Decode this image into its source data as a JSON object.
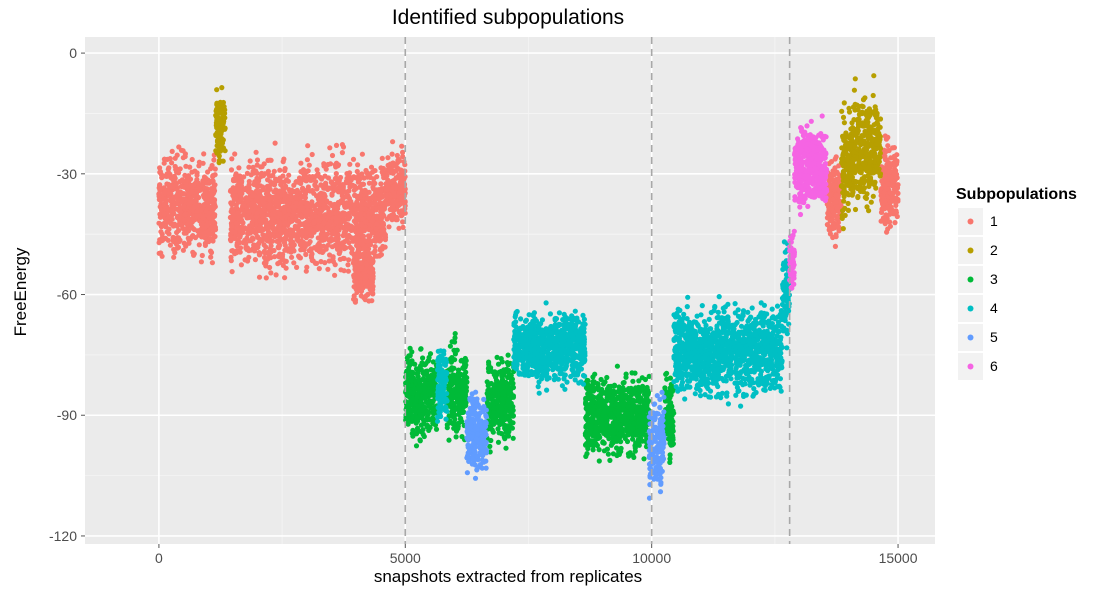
{
  "chart_data": {
    "type": "scatter",
    "title": "Identified subpopulations",
    "xlabel": "snapshots extracted from replicates",
    "ylabel": "FreeEnergy",
    "xlim": [
      -1500,
      15750
    ],
    "ylim": [
      -122,
      4
    ],
    "x_ticks": [
      0,
      5000,
      10000,
      15000
    ],
    "x_tick_labels": [
      "0",
      "5000",
      "10000",
      "15000"
    ],
    "y_ticks": [
      0,
      -30,
      -60,
      -90,
      -120
    ],
    "y_tick_labels": [
      "0",
      "-30",
      "-60",
      "-90",
      "-120"
    ],
    "grid": true,
    "vlines": [
      5000,
      10000,
      12800
    ],
    "legend": {
      "title": "Subpopulations",
      "placement": "right",
      "entries": [
        "1",
        "2",
        "3",
        "4",
        "5",
        "6"
      ]
    },
    "series": [
      {
        "name": "1",
        "color": "#F8766D",
        "clusters": [
          {
            "x": [
              0,
              1150
            ],
            "y_center": -38,
            "y_spread": 11
          },
          {
            "x": [
              1450,
              4600
            ],
            "y_center": -40,
            "y_spread": 12
          },
          {
            "x": [
              3950,
              4350
            ],
            "y_center": -55,
            "y_spread": 6
          },
          {
            "x": [
              4600,
              5000
            ],
            "y_center": -34,
            "y_spread": 8
          },
          {
            "x": [
              13550,
              13850
            ],
            "y_center": -36,
            "y_spread": 9
          },
          {
            "x": [
              14650,
              15000
            ],
            "y_center": -33,
            "y_spread": 10
          }
        ]
      },
      {
        "name": "2",
        "color": "#B79F00",
        "clusters": [
          {
            "x": [
              1150,
              1350
            ],
            "y_center": -18,
            "y_spread": 9
          },
          {
            "x": [
              13850,
              14100
            ],
            "y_center": -27,
            "y_spread": 12
          },
          {
            "x": [
              14100,
              14650
            ],
            "y_center": -24,
            "y_spread": 12
          }
        ]
      },
      {
        "name": "3",
        "color": "#00BA38",
        "clusters": [
          {
            "x": [
              5000,
              5650
            ],
            "y_center": -85,
            "y_spread": 10
          },
          {
            "x": [
              5850,
              6250
            ],
            "y_center": -84,
            "y_spread": 10
          },
          {
            "x": [
              6650,
              7200
            ],
            "y_center": -86,
            "y_spread": 10
          },
          {
            "x": [
              8650,
              9950
            ],
            "y_center": -90,
            "y_spread": 9
          },
          {
            "x": [
              10250,
              10450
            ],
            "y_center": -90,
            "y_spread": 9
          }
        ]
      },
      {
        "name": "4",
        "color": "#00BFC4",
        "clusters": [
          {
            "x": [
              5650,
              5850
            ],
            "y_center": -82,
            "y_spread": 8
          },
          {
            "x": [
              7200,
              8650
            ],
            "y_center": -73,
            "y_spread": 8
          },
          {
            "x": [
              10450,
              12650
            ],
            "y_center": -74,
            "y_spread": 10
          },
          {
            "x": [
              12650,
              12800
            ],
            "y_center": -58,
            "y_spread": 10
          }
        ]
      },
      {
        "name": "5",
        "color": "#619CFF",
        "clusters": [
          {
            "x": [
              6250,
              6650
            ],
            "y_center": -95,
            "y_spread": 9
          },
          {
            "x": [
              9950,
              10250
            ],
            "y_center": -97,
            "y_spread": 10
          }
        ]
      },
      {
        "name": "6",
        "color": "#F564E3",
        "clusters": [
          {
            "x": [
              12800,
              12900
            ],
            "y_center": -52,
            "y_spread": 7
          },
          {
            "x": [
              12900,
              13550
            ],
            "y_center": -28,
            "y_spread": 9
          }
        ]
      }
    ]
  }
}
